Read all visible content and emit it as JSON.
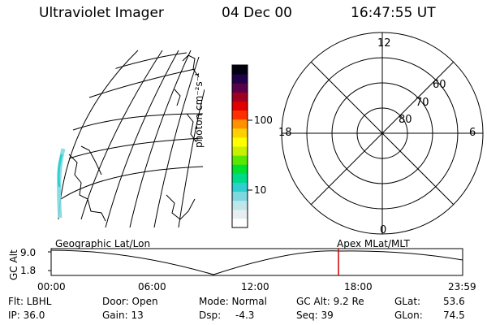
{
  "header": {
    "title": "Ultraviolet Imager",
    "date": "04 Dec 00",
    "time": "16:47:55 UT"
  },
  "colorbar": {
    "label": "photon cm⁻²s⁻¹",
    "ticks": [
      "100",
      "10"
    ],
    "colors": [
      "#ffffff",
      "#e7eef0",
      "#bfe6ea",
      "#7fd8e0",
      "#2fcfd0",
      "#00d88a",
      "#00e030",
      "#5ae800",
      "#c8f000",
      "#ffff00",
      "#ffd000",
      "#ff9000",
      "#ff3000",
      "#e00000",
      "#a00020",
      "#58004a",
      "#200048",
      "#000010"
    ]
  },
  "polar_plot": {
    "mlt_labels": [
      "12",
      "18",
      "6",
      "0"
    ],
    "lat_labels": [
      "60",
      "70",
      "80"
    ]
  },
  "timeline": {
    "left_label": "Geographic Lat/Lon",
    "right_label": "Apex MLat/MLT",
    "y_axis_title": "GC Alt",
    "y_ticks": [
      "9.0",
      "1.8"
    ],
    "x_ticks": [
      "00:00",
      "06:00",
      "12:00",
      "18:00",
      "23:59"
    ],
    "marker_color": "#cc0000"
  },
  "status": {
    "flt": "Flt: LBHL",
    "ip": "IP: 36.0",
    "door": "Door: Open",
    "gain": "Gain: 13",
    "mode": "Mode: Normal",
    "dsp": "Dsp:",
    "dsp_val": "-4.3",
    "gcalt": "GC Alt: 9.2 Re",
    "seq": "Seq: 39",
    "glat": "GLat:",
    "glat_val": "53.6",
    "glon": "GLon:",
    "glon_val": "74.5"
  }
}
